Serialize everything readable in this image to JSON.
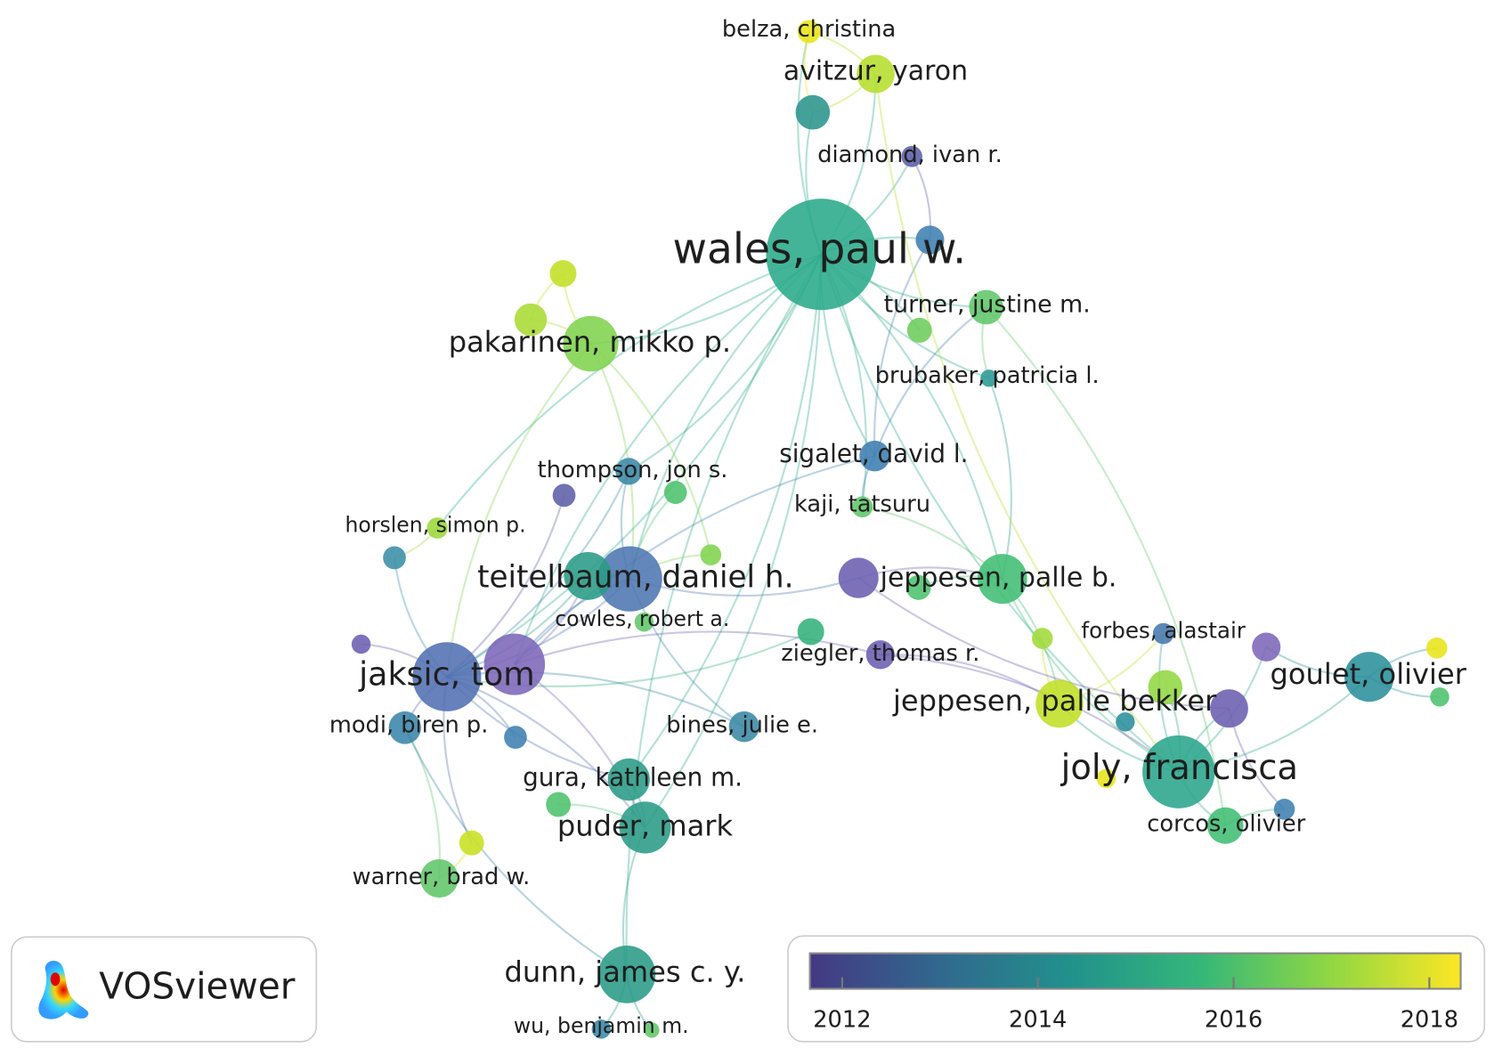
{
  "nodes": [
    {
      "label": "belza, christina",
      "color": "#e8e419"
    },
    {
      "label": "avitzur, yaron",
      "color": "#b5de2b"
    },
    {
      "color": "#2a948c"
    },
    {
      "label": "diamond, ivan r.",
      "color": "#5b5fa8"
    },
    {
      "label": "wales, paul w.",
      "color": "#2aaa8a"
    },
    {
      "color": "#3e7fb0"
    },
    {
      "label": "turner, justine m.",
      "color": "#60c669"
    },
    {
      "color": "#6ccc5c"
    },
    {
      "label": "brubaker, patricia l.",
      "color": "#2a9a93"
    },
    {
      "color": "#c2df23"
    },
    {
      "color": "#a9db33"
    },
    {
      "label": "pakarinen, mikko p.",
      "color": "#7fd34e"
    },
    {
      "label": "sigalet, david l.",
      "color": "#3c7db0"
    },
    {
      "label": "kaji, tatsuru",
      "color": "#60c669"
    },
    {
      "label": "thompson, jon s.",
      "color": "#3a88a5"
    },
    {
      "color": "#5d5ea6"
    },
    {
      "color": "#4cc26c"
    },
    {
      "label": "horslen, simon p.",
      "color": "#9ad83b"
    },
    {
      "color": "#3a8ea6"
    },
    {
      "color": "#7fd34e"
    },
    {
      "label": "teitelbaum, daniel h.",
      "color": "#4d76b0"
    },
    {
      "color": "#2a9b86"
    },
    {
      "color": "#6b5eb0"
    },
    {
      "label": "jeppesen, palle b.",
      "color": "#40bd73"
    },
    {
      "color": "#4cc26c"
    },
    {
      "label": "cowles, robert a.",
      "color": "#60c669"
    },
    {
      "color": "#33b07a"
    },
    {
      "label": "ziegler, thomas r.",
      "color": "#6b5eb0"
    },
    {
      "color": "#6b5eb0"
    },
    {
      "label": "jaksic, tom",
      "color": "#5170b2"
    },
    {
      "color": "#7c67b8"
    },
    {
      "color": "#a0da39"
    },
    {
      "label": "forbes, alastair",
      "color": "#4478ad"
    },
    {
      "color": "#7c67b8"
    },
    {
      "color": "#e8e419"
    },
    {
      "label": "goulet, olivier",
      "color": "#2a8f9b"
    },
    {
      "color": "#4cc26c"
    },
    {
      "label": "jeppesen, palle bekker",
      "color": "#c0df25"
    },
    {
      "color": "#91d742"
    },
    {
      "color": "#6b5eb0"
    },
    {
      "color": "#2a8e9c"
    },
    {
      "label": "joly, francisca",
      "color": "#2aa58b"
    },
    {
      "color": "#e8e419"
    },
    {
      "color": "#3e7fb0"
    },
    {
      "label": "corcos, olivier",
      "color": "#40bd73"
    },
    {
      "label": "modi, biren p.",
      "color": "#3a85a8"
    },
    {
      "color": "#3e7fb0"
    },
    {
      "label": "bines, julie e.",
      "color": "#3a88a5"
    },
    {
      "label": "gura, kathleen m.",
      "color": "#2a9b86"
    },
    {
      "color": "#4cc26c"
    },
    {
      "label": "puder, mark",
      "color": "#2a9b86"
    },
    {
      "color": "#c8e020"
    },
    {
      "label": "warner, brad w.",
      "color": "#60c669"
    },
    {
      "label": "dunn, james c. y.",
      "color": "#2a9b86"
    },
    {
      "label": "wu, benjamin m.",
      "color": "#3a88a5"
    },
    {
      "color": "#60c669"
    }
  ],
  "logo": {
    "text": "VOSviewer"
  },
  "legend": {
    "range": [
      2011.67,
      2018.32
    ],
    "ticks": [
      2012,
      2014,
      2016,
      2018
    ],
    "colors": [
      "#443983",
      "#31688e",
      "#21918c",
      "#35b779",
      "#90d743",
      "#fde725"
    ]
  }
}
